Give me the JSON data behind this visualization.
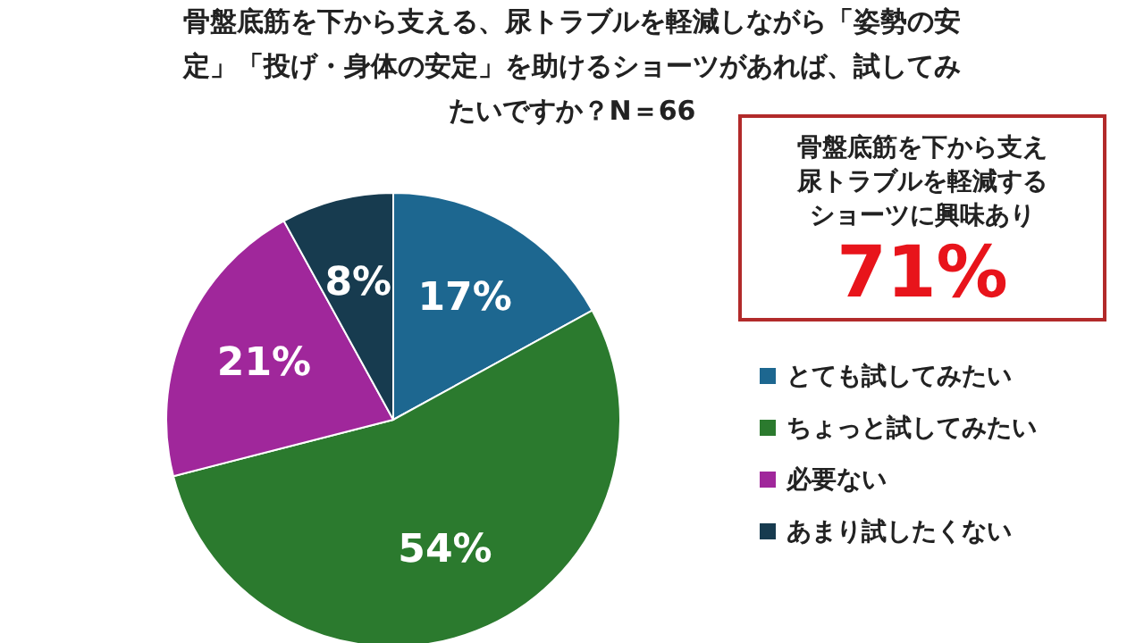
{
  "chart_data": {
    "type": "pie",
    "title": "骨盤底筋を下から支える、尿トラブルを軽減しながら「姿勢の安定」「投げ・身体の安定」を助けるショーツがあれば、試してみたいですか？N＝66",
    "categories": [
      "とても試してみたい",
      "ちょっと試してみたい",
      "必要ない",
      "あまり試したくない"
    ],
    "values": [
      17,
      54,
      21,
      8
    ],
    "colors": [
      "#1d6790",
      "#2b7a2e",
      "#a0279b",
      "#173b4f"
    ],
    "value_labels": [
      "17%",
      "54%",
      "21%",
      "8%"
    ],
    "legend": "right",
    "annotations": [
      "骨盤底筋を下から支え尿トラブルを軽減するショーツに興味あり",
      "71%"
    ]
  }
}
